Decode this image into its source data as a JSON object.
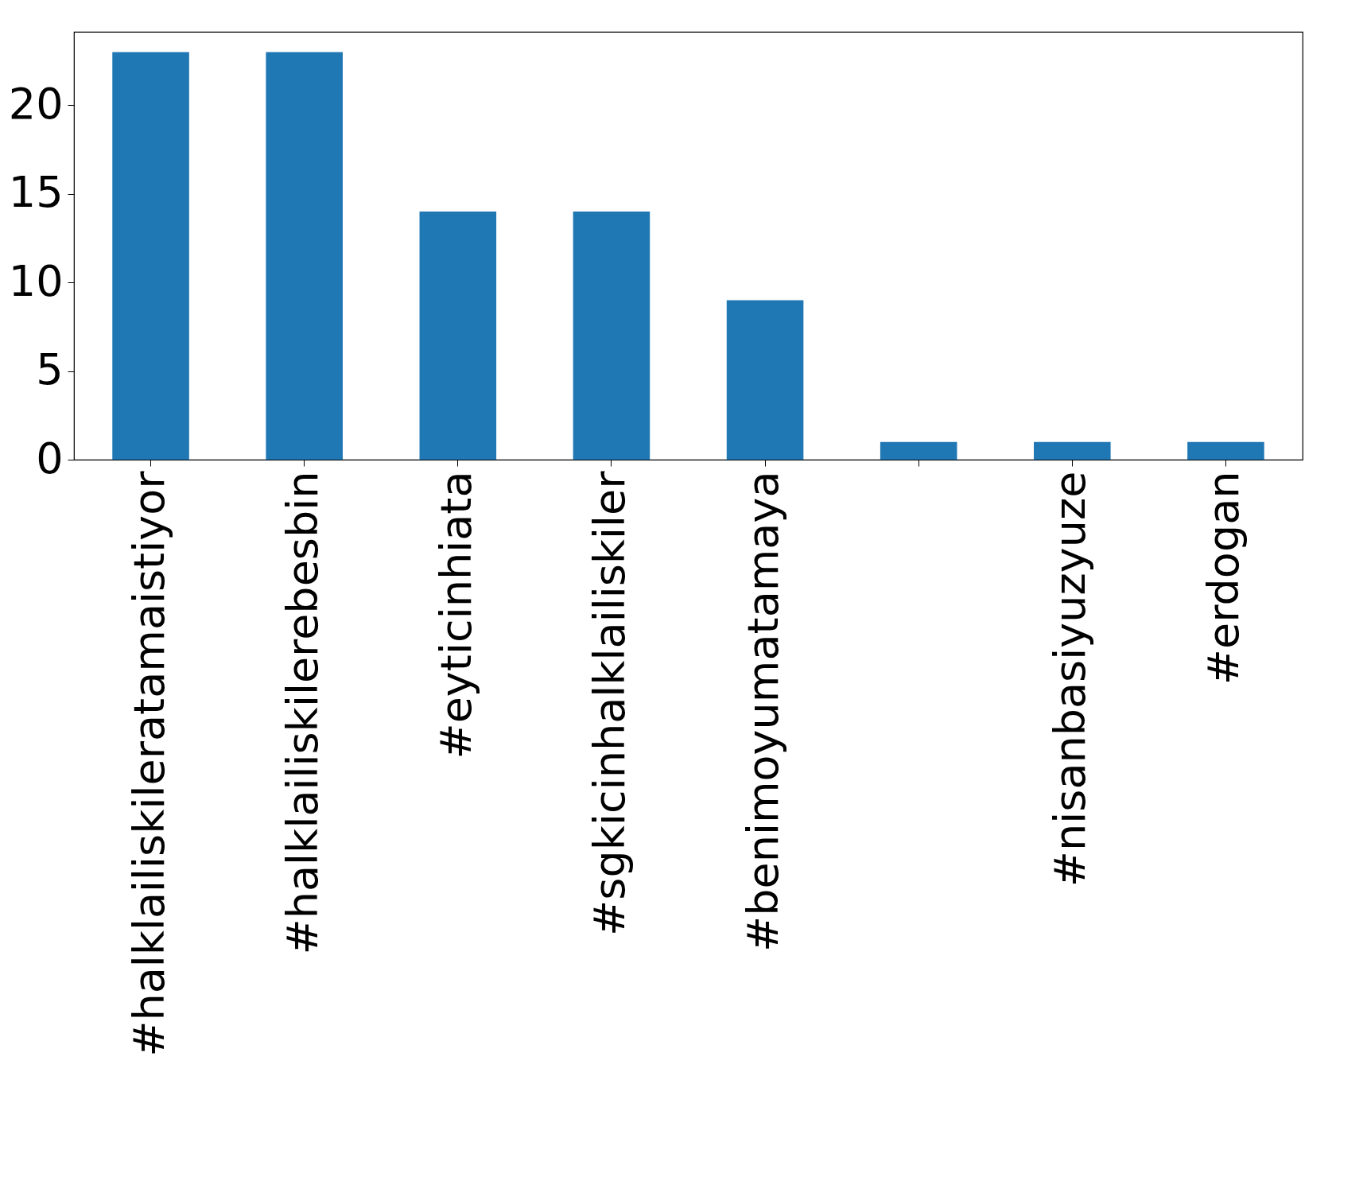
{
  "chart_data": {
    "type": "bar",
    "categories": [
      "#halklailiskileratamaistiyor",
      "#halklailiskilerebesbin",
      "#eyticinhiata",
      "#sgkicinhalklailiskiler",
      "#benimoyumatamaya",
      null,
      "#nisanbasiyuzyuze",
      "#erdogan"
    ],
    "values": [
      23,
      23,
      14,
      14,
      9,
      1,
      1,
      1
    ],
    "color": "#1f77b4",
    "ylim": [
      0,
      24.15
    ],
    "yticks": [
      0,
      5,
      10,
      15,
      20
    ],
    "grid": false
  }
}
